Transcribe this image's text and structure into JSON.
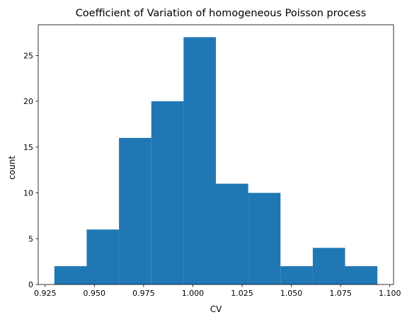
{
  "chart_data": {
    "type": "bar",
    "title": "Coefficient of Variation of homogeneous Poisson process",
    "xlabel": "CV",
    "ylabel": "count",
    "bin_edges": [
      0.9297,
      0.9461,
      0.9625,
      0.9789,
      0.9953,
      1.0117,
      1.0281,
      1.0445,
      1.0609,
      1.0773,
      1.0937
    ],
    "values": [
      2,
      6,
      16,
      20,
      27,
      11,
      10,
      2,
      4,
      2
    ],
    "xlim": [
      0.9215,
      1.1019
    ],
    "ylim": [
      0,
      28.35
    ],
    "xticks": [
      0.925,
      0.95,
      0.975,
      1.0,
      1.025,
      1.05,
      1.075,
      1.1
    ],
    "xtick_labels": [
      "0.925",
      "0.950",
      "0.975",
      "1.000",
      "1.025",
      "1.050",
      "1.075",
      "1.100"
    ],
    "yticks": [
      0,
      5,
      10,
      15,
      20,
      25
    ],
    "ytick_labels": [
      "0",
      "5",
      "10",
      "15",
      "20",
      "25"
    ],
    "grid": false,
    "colors": {
      "bar": "#1f77b4",
      "axis": "#000000"
    }
  }
}
